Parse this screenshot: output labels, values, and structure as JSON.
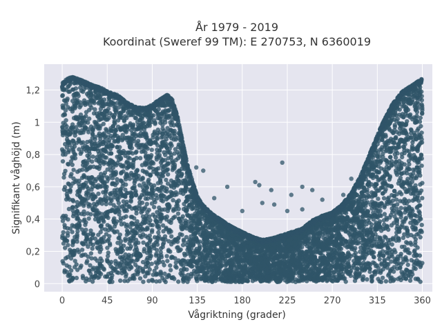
{
  "chart_data": {
    "type": "scatter",
    "title_lines": [
      "År 1979 - 2019",
      "Koordinat (Sweref 99 TM): E 270753, N 6360019"
    ],
    "xlabel": "Vågriktning (grader)",
    "ylabel": "Signifikant våghöjd (m)",
    "xlim": [
      -18,
      370
    ],
    "ylim": [
      -0.05,
      1.36
    ],
    "xticks": [
      0,
      45,
      90,
      135,
      180,
      225,
      270,
      315,
      360
    ],
    "xtick_labels": [
      "0",
      "45",
      "90",
      "135",
      "180",
      "225",
      "270",
      "315",
      "360"
    ],
    "yticks": [
      0,
      0.2,
      0.4,
      0.6,
      0.8,
      1.0,
      1.2
    ],
    "ytick_labels": [
      "0",
      "0,2",
      "0,4",
      "0,6",
      "0,8",
      "1",
      "1,2"
    ],
    "grid": true,
    "legend": "none",
    "marker_color": "#2f5468",
    "background_color": "#e5e5ef",
    "envelope": {
      "x": [
        0,
        5,
        10,
        20,
        30,
        40,
        45,
        55,
        65,
        75,
        85,
        95,
        105,
        110,
        115,
        120,
        125,
        130,
        135,
        140,
        150,
        160,
        170,
        180,
        190,
        200,
        210,
        220,
        230,
        240,
        250,
        260,
        270,
        280,
        290,
        300,
        310,
        320,
        330,
        340,
        350,
        360
      ],
      "max_y": [
        1.25,
        1.28,
        1.29,
        1.27,
        1.24,
        1.22,
        1.2,
        1.18,
        1.13,
        1.1,
        1.1,
        1.14,
        1.18,
        1.15,
        1.05,
        0.9,
        0.75,
        0.65,
        0.55,
        0.5,
        0.44,
        0.4,
        0.36,
        0.33,
        0.3,
        0.28,
        0.29,
        0.31,
        0.33,
        0.35,
        0.4,
        0.43,
        0.45,
        0.5,
        0.58,
        0.7,
        0.85,
        1.0,
        1.12,
        1.2,
        1.24,
        1.28
      ]
    },
    "outliers": [
      {
        "x": 220,
        "y": 0.75
      },
      {
        "x": 141,
        "y": 0.7
      },
      {
        "x": 134,
        "y": 0.72
      },
      {
        "x": 193,
        "y": 0.63
      },
      {
        "x": 197,
        "y": 0.61
      },
      {
        "x": 209,
        "y": 0.58
      },
      {
        "x": 240,
        "y": 0.6
      },
      {
        "x": 250,
        "y": 0.58
      },
      {
        "x": 229,
        "y": 0.55
      },
      {
        "x": 165,
        "y": 0.6
      },
      {
        "x": 289,
        "y": 0.65
      },
      {
        "x": 281,
        "y": 0.55
      },
      {
        "x": 180,
        "y": 0.45
      },
      {
        "x": 200,
        "y": 0.5
      },
      {
        "x": 212,
        "y": 0.49
      },
      {
        "x": 260,
        "y": 0.52
      },
      {
        "x": 300,
        "y": 0.56
      },
      {
        "x": 152,
        "y": 0.53
      },
      {
        "x": 225,
        "y": 0.45
      },
      {
        "x": 240,
        "y": 0.46
      }
    ]
  }
}
